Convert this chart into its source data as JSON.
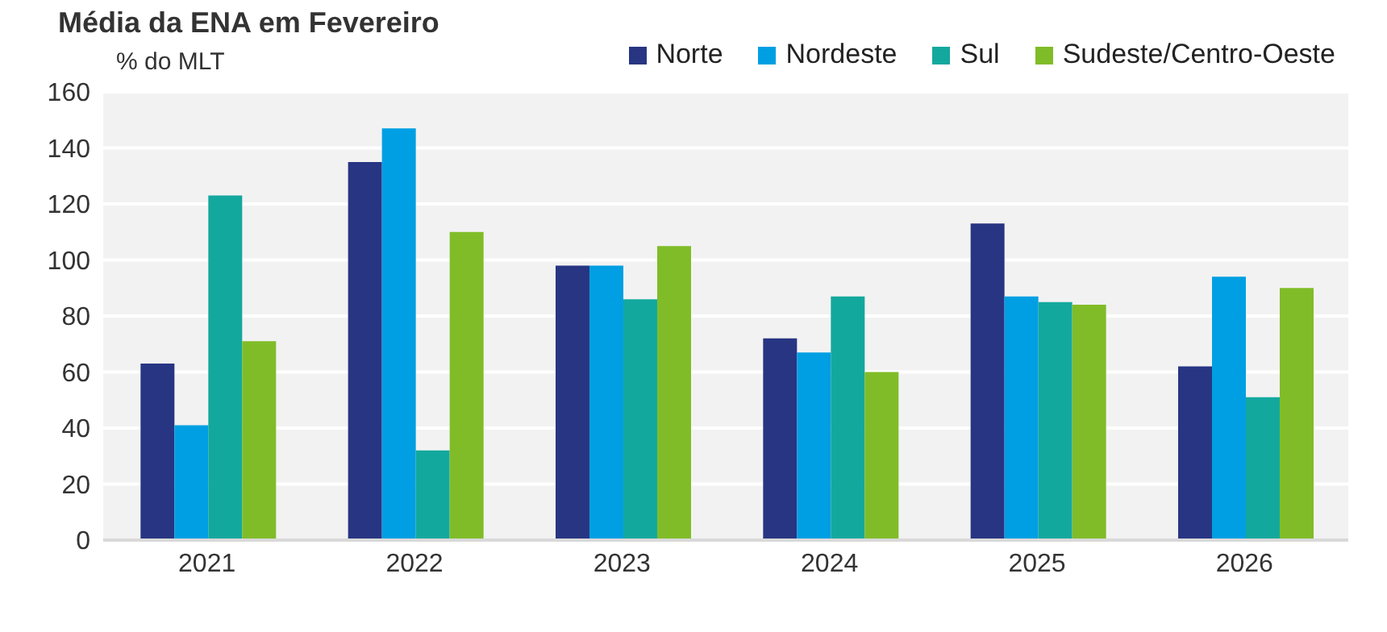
{
  "chart_data": {
    "type": "bar",
    "title": "Média da ENA em Fevereiro",
    "ylabel": "% do MLT",
    "categories": [
      "2021",
      "2022",
      "2023",
      "2024",
      "2025",
      "2026"
    ],
    "series": [
      {
        "name": "Norte",
        "color": "#283583",
        "values": [
          63,
          135,
          98,
          72,
          113,
          62
        ]
      },
      {
        "name": "Nordeste",
        "color": "#009fe3",
        "values": [
          41,
          147,
          98,
          67,
          87,
          94
        ]
      },
      {
        "name": "Sul",
        "color": "#13a89e",
        "values": [
          123,
          32,
          86,
          87,
          85,
          51
        ]
      },
      {
        "name": "Sudeste/Centro-Oeste",
        "color": "#80bc28",
        "values": [
          71,
          110,
          105,
          60,
          84,
          90
        ]
      }
    ],
    "ylim": [
      0,
      160
    ],
    "yticks": [
      0,
      20,
      40,
      60,
      80,
      100,
      120,
      140,
      160
    ],
    "grid": "y",
    "legend": "top right"
  }
}
